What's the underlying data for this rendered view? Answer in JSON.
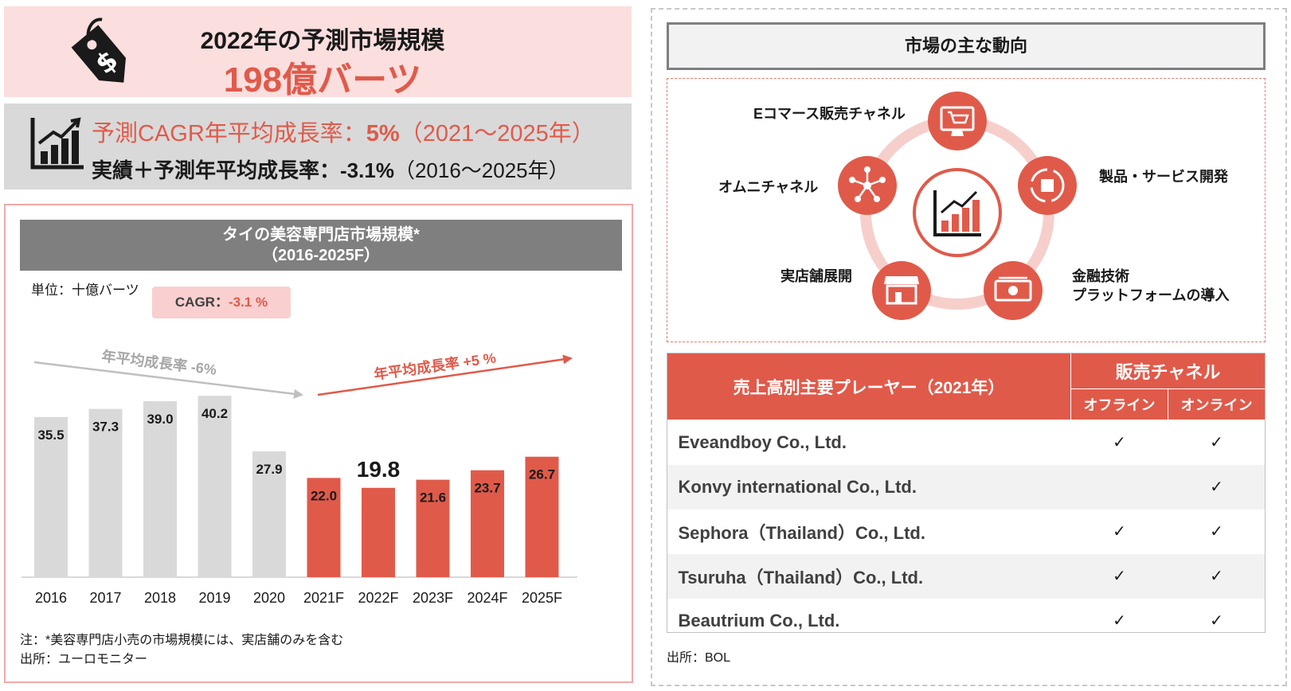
{
  "forecast_banner": {
    "line1": "2022年の予測市場規模",
    "line2": "198億バーツ"
  },
  "cagr_banner": {
    "line1_prefix": "予測CAGR年平均成長率：",
    "line1_value": "5%",
    "line1_period": "（2021～2025年）",
    "line2_prefix": "実績＋予測年平均成長率：",
    "line2_value": "-3.1%",
    "line2_period": "（2016～2025年）"
  },
  "chart_panel": {
    "title_line1": "タイの美容専門店市場規模*",
    "title_line2": "（2016-2025F）",
    "unit": "単位：十億バーツ",
    "cagr_chip_label": "CAGR：",
    "cagr_chip_value": "-3.1 %",
    "trend_past_label": "年平均成長率 -6%",
    "trend_future_label": "年平均成長率 +5 %",
    "note": "注：*美容専門店小売の市場規模には、実店舗のみを含む",
    "source": "出所：ユーロモニター"
  },
  "chart_data": {
    "type": "bar",
    "categories": [
      "2016",
      "2017",
      "2018",
      "2019",
      "2020",
      "2021F",
      "2022F",
      "2023F",
      "2024F",
      "2025F"
    ],
    "values": [
      35.5,
      37.3,
      39.0,
      40.2,
      27.9,
      22.0,
      19.8,
      21.6,
      23.7,
      26.7
    ],
    "labels": [
      "35.5",
      "37.3",
      "39.0",
      "40.2",
      "27.9",
      "22.0",
      "19.8",
      "21.6",
      "23.7",
      "26.7"
    ],
    "highlight_index": 6,
    "colors": {
      "actual": "#d9d9d9",
      "forecast": "#e05a4a"
    },
    "forecast_from_index": 5,
    "ylim": [
      0,
      45
    ],
    "grid": false,
    "title": "タイの美容専門店市場規模*（2016-2025F）",
    "ylabel": "単位：十億バーツ"
  },
  "trends": {
    "header": "市場の主な動向",
    "items": [
      {
        "label": "Eコマース販売チャネル",
        "icon": "computer-cart-icon"
      },
      {
        "label": "製品・サービス開発",
        "icon": "box-cycle-icon"
      },
      {
        "label": "金融技術\nプラットフォームの導入",
        "icon": "money-icon"
      },
      {
        "label": "実店舗展開",
        "icon": "storefront-icon"
      },
      {
        "label": "オムニチャネル",
        "icon": "network-icon"
      }
    ],
    "center_icon": "growth-chart-icon",
    "accent": "#e05a4a"
  },
  "players": {
    "header": "売上高別主要プレーヤー（2021年）",
    "channel_header": "販売チャネル",
    "offline_label": "オフライン",
    "online_label": "オンライン",
    "rows": [
      {
        "name": "Eveandboy Co., Ltd.",
        "offline": "✓",
        "online": "✓"
      },
      {
        "name": "Konvy international Co., Ltd.",
        "offline": "",
        "online": "✓"
      },
      {
        "name": "Sephora（Thailand）Co., Ltd.",
        "offline": "✓",
        "online": "✓"
      },
      {
        "name": "Tsuruha（Thailand）Co., Ltd.",
        "offline": "✓",
        "online": "✓"
      },
      {
        "name": "Beautrium Co., Ltd.",
        "offline": "✓",
        "online": "✓"
      }
    ],
    "source": "出所：BOL"
  }
}
